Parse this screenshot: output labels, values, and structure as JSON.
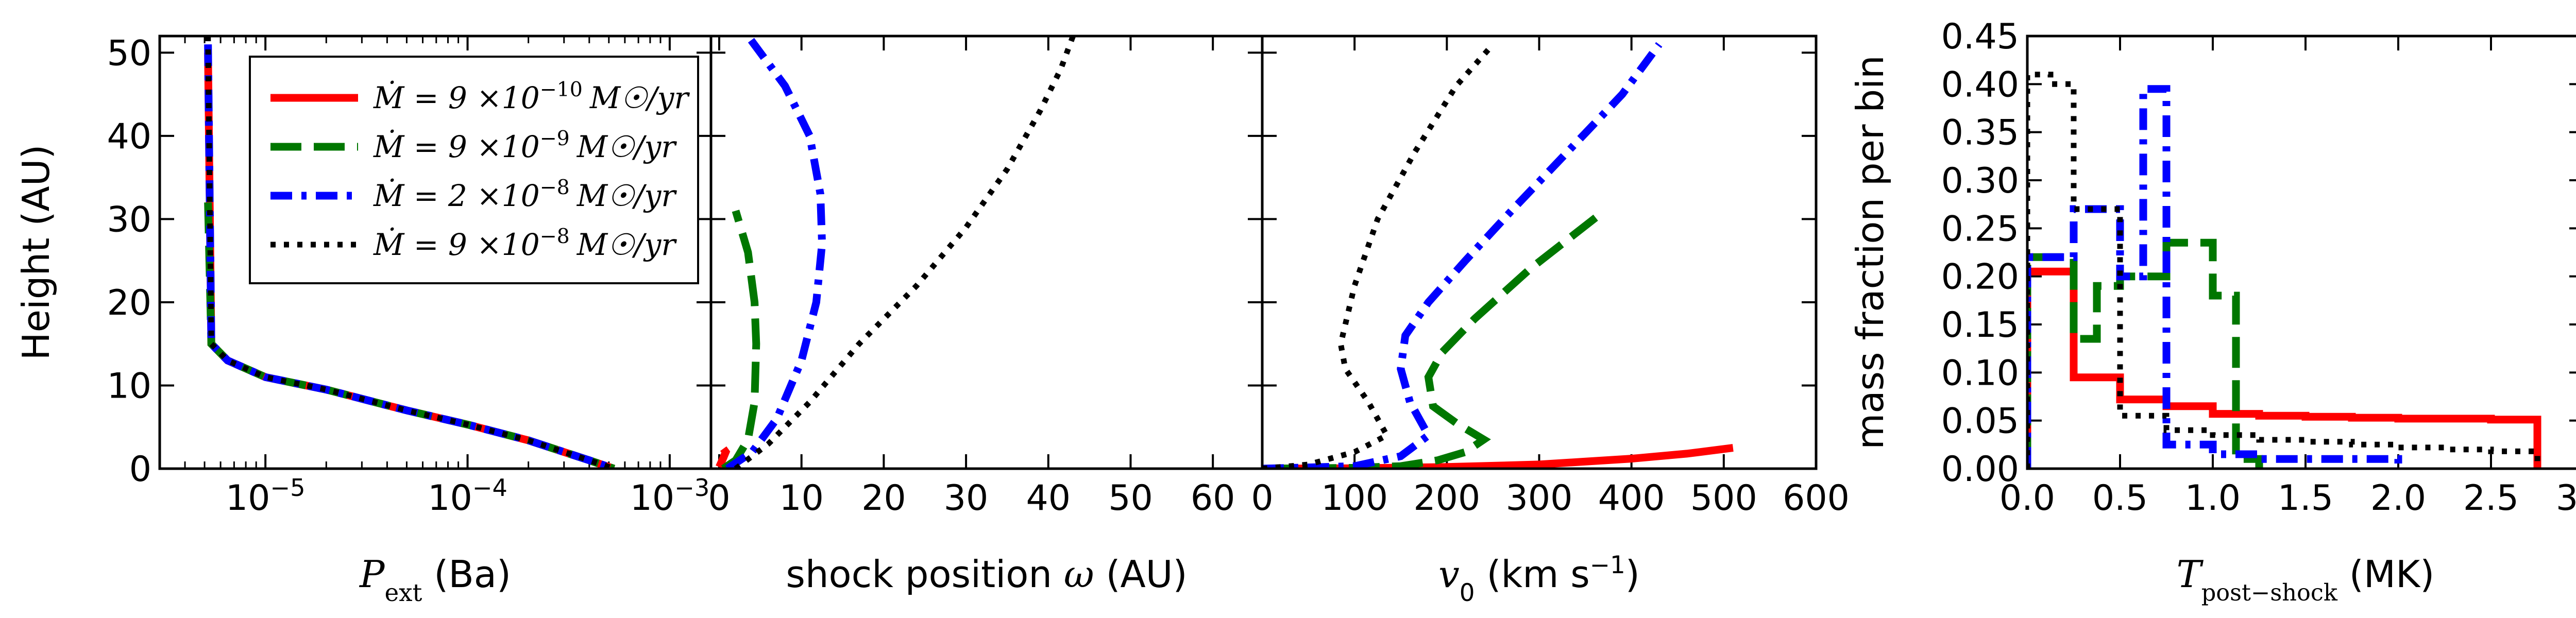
{
  "chart_data": [
    {
      "type": "line",
      "panel": "pressure",
      "xlabel": "P_ext (Ba)",
      "ylabel": "Height (AU)",
      "xscale": "log",
      "xlim": [
        3e-06,
        0.0016
      ],
      "ylim": [
        0,
        52
      ],
      "xtick_labels": [
        "10^-5",
        "10^-4",
        "10^-3"
      ],
      "xtick_values": [
        1e-05,
        0.0001,
        0.001
      ],
      "ytick_labels": [
        "0",
        "10",
        "20",
        "30",
        "40",
        "50"
      ],
      "ytick_values": [
        0,
        10,
        20,
        30,
        40,
        50
      ],
      "legend": {
        "placement": "upper-left",
        "entries": [
          {
            "label_pre": "Ṁ = 9 ×10",
            "exp": "−10",
            "label_post": "M☉/yr",
            "series_index": 0
          },
          {
            "label_pre": "Ṁ = 9 ×10",
            "exp": "−9",
            "label_post": "M☉/yr",
            "series_index": 1
          },
          {
            "label_pre": "Ṁ = 2 ×10",
            "exp": "−8",
            "label_post": "M☉/yr",
            "series_index": 2
          },
          {
            "label_pre": "Ṁ = 9 ×10",
            "exp": "−8",
            "label_post": "M☉/yr",
            "series_index": 3
          }
        ]
      },
      "series": [
        {
          "color": "#ff0000",
          "style": "solid",
          "x": [
            5.2e-06,
            5.4e-06,
            6.5e-06,
            1e-05,
            2e-05,
            5e-05,
            0.0001,
            0.0002,
            0.0003,
            0.0004,
            0.00053
          ],
          "y": [
            50,
            15,
            13,
            11,
            9.5,
            7,
            5.3,
            3.4,
            2,
            1,
            0
          ]
        },
        {
          "color": "#007700",
          "style": "dashed",
          "x": [
            5.2e-06,
            5.4e-06,
            6.5e-06,
            1e-05,
            2e-05,
            5e-05,
            0.0001,
            0.0002,
            0.0003,
            0.0004,
            0.00053
          ],
          "y": [
            32,
            15,
            13,
            11,
            9.5,
            7,
            5.3,
            3.4,
            2,
            1,
            0
          ]
        },
        {
          "color": "#0000ff",
          "style": "dashdot",
          "x": [
            5.2e-06,
            5.4e-06,
            6.5e-06,
            1e-05,
            2e-05,
            5e-05,
            0.0001,
            0.0002,
            0.0003,
            0.0004,
            0.00053
          ],
          "y": [
            51,
            15,
            13,
            11,
            9.5,
            7,
            5.3,
            3.4,
            2,
            1,
            0
          ]
        },
        {
          "color": "#000000",
          "style": "dotted",
          "x": [
            5.2e-06,
            5.4e-06,
            6.5e-06,
            1e-05,
            2e-05,
            5e-05,
            0.0001,
            0.0002,
            0.0003,
            0.0004,
            0.00053
          ],
          "y": [
            52,
            15,
            13,
            11,
            9.5,
            7,
            5.3,
            3.4,
            2,
            1,
            0
          ]
        }
      ]
    },
    {
      "type": "line",
      "panel": "shock-position",
      "xlabel": "shock position ω (AU)",
      "xlim": [
        -1,
        66
      ],
      "ylim": [
        0,
        52
      ],
      "xtick_labels": [
        "0",
        "10",
        "20",
        "30",
        "40",
        "50",
        "60"
      ],
      "xtick_values": [
        0,
        10,
        20,
        30,
        40,
        50,
        60
      ],
      "series": [
        {
          "color": "#ff0000",
          "style": "solid",
          "x": [
            0,
            0.5,
            0.8,
            0.5
          ],
          "y": [
            0.2,
            1.3,
            2,
            2.4
          ]
        },
        {
          "color": "#007700",
          "style": "dashed",
          "x": [
            0.5,
            2,
            3.5,
            4.3,
            4.5,
            4.3,
            3.5,
            2
          ],
          "y": [
            0,
            1,
            3.5,
            8,
            15,
            20,
            26,
            31
          ]
        },
        {
          "color": "#0000ff",
          "style": "dashdot",
          "x": [
            1,
            4,
            7,
            10,
            11.8,
            12.5,
            12.3,
            11,
            8,
            5,
            3.5
          ],
          "y": [
            0,
            2,
            6,
            13,
            20,
            27,
            33,
            40,
            46,
            50,
            52
          ]
        },
        {
          "color": "#000000",
          "style": "dotted",
          "x": [
            2,
            6,
            11,
            17,
            24,
            30,
            35,
            39,
            41.5,
            43
          ],
          "y": [
            0,
            3,
            8,
            15,
            22,
            29,
            36,
            43,
            48,
            52
          ]
        }
      ]
    },
    {
      "type": "line",
      "panel": "velocity",
      "xlabel": "v0 (km s^-1)",
      "xlim": [
        0,
        600
      ],
      "ylim": [
        0,
        52
      ],
      "xtick_labels": [
        "0",
        "100",
        "200",
        "300",
        "400",
        "500",
        "600"
      ],
      "xtick_values": [
        0,
        100,
        200,
        300,
        400,
        500,
        600
      ],
      "series": [
        {
          "color": "#ff0000",
          "style": "solid",
          "x": [
            0,
            100,
            200,
            300,
            400,
            460,
            510
          ],
          "y": [
            0,
            0.05,
            0.2,
            0.5,
            1.2,
            1.8,
            2.5
          ]
        },
        {
          "color": "#007700",
          "style": "dashed",
          "x": [
            0,
            100,
            150,
            190,
            220,
            240,
            210,
            185,
            180,
            195,
            230,
            290,
            365
          ],
          "y": [
            0,
            0.1,
            0.3,
            1,
            2,
            3.5,
            5.5,
            7.5,
            11,
            14,
            18,
            24,
            30.5
          ]
        },
        {
          "color": "#0000ff",
          "style": "dashdot",
          "x": [
            0,
            100,
            150,
            180,
            160,
            150,
            155,
            180,
            220,
            270,
            330,
            390,
            430
          ],
          "y": [
            0,
            0.3,
            1.5,
            4,
            8,
            12,
            16,
            20,
            25,
            31,
            38,
            45,
            51
          ]
        },
        {
          "color": "#000000",
          "style": "dotted",
          "x": [
            0,
            50,
            100,
            135,
            115,
            90,
            85,
            100,
            125,
            165,
            210,
            250
          ],
          "y": [
            0,
            0.5,
            2,
            4,
            8,
            12,
            15,
            22,
            30,
            38,
            46,
            51
          ]
        }
      ]
    },
    {
      "type": "line",
      "subtype": "step-histogram",
      "panel": "temperature",
      "xlabel": "T_post-shock (MK)",
      "ylabel": "mass fraction per bin",
      "xlim": [
        0,
        3.0
      ],
      "ylim": [
        0,
        0.45
      ],
      "xtick_labels": [
        "0.0",
        "0.5",
        "1.0",
        "1.5",
        "2.0",
        "2.5",
        "3.0"
      ],
      "xtick_values": [
        0,
        0.5,
        1.0,
        1.5,
        2.0,
        2.5,
        3.0
      ],
      "ytick_labels": [
        "0.00",
        "0.05",
        "0.10",
        "0.15",
        "0.20",
        "0.25",
        "0.30",
        "0.35",
        "0.40",
        "0.45"
      ],
      "ytick_values": [
        0,
        0.05,
        0.1,
        0.15,
        0.2,
        0.25,
        0.3,
        0.35,
        0.4,
        0.45
      ],
      "series": [
        {
          "color": "#ff0000",
          "style": "solid",
          "edges": [
            0,
            0.25,
            0.5,
            0.75,
            1.0,
            1.25,
            1.5,
            1.75,
            2.0,
            2.25,
            2.5,
            2.75
          ],
          "values": [
            0.205,
            0.095,
            0.072,
            0.065,
            0.057,
            0.055,
            0.054,
            0.053,
            0.052,
            0.052,
            0.051
          ]
        },
        {
          "color": "#007700",
          "style": "dashed",
          "edges": [
            0,
            0.25,
            0.375,
            0.5,
            0.75,
            1.0,
            1.125,
            1.25
          ],
          "values": [
            0.22,
            0.135,
            0.19,
            0.2,
            0.235,
            0.18,
            0.01
          ]
        },
        {
          "color": "#0000ff",
          "style": "dashdot",
          "edges": [
            0,
            0.25,
            0.5,
            0.625,
            0.75,
            1.0,
            1.25,
            1.5,
            1.75,
            2.0
          ],
          "values": [
            0.22,
            0.27,
            0.2,
            0.395,
            0.025,
            0.015,
            0.01,
            0.01,
            0.01
          ]
        },
        {
          "color": "#000000",
          "style": "dotted",
          "edges": [
            0,
            0.125,
            0.25,
            0.5,
            0.75,
            1.0,
            1.25,
            1.5,
            1.75,
            2.0,
            2.25,
            2.5,
            2.75
          ],
          "values": [
            0.41,
            0.4,
            0.27,
            0.055,
            0.04,
            0.035,
            0.03,
            0.028,
            0.025,
            0.022,
            0.02,
            0.018
          ]
        }
      ]
    }
  ]
}
